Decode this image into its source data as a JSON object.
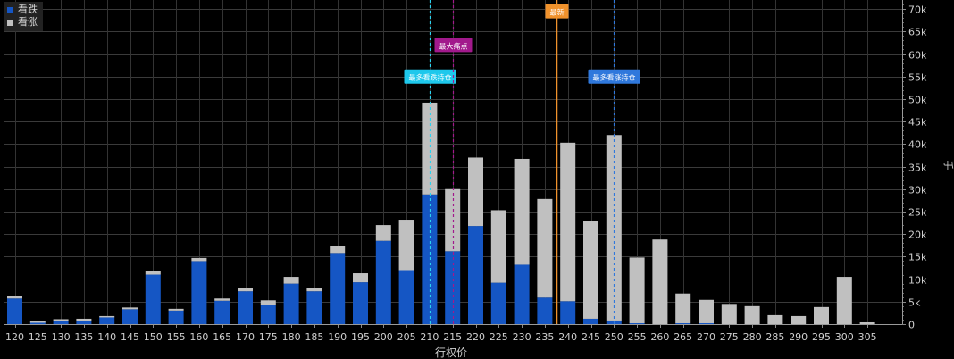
{
  "chart_data": {
    "type": "bar",
    "stacked": true,
    "categories": [
      "120",
      "125",
      "130",
      "135",
      "140",
      "145",
      "150",
      "155",
      "160",
      "165",
      "170",
      "175",
      "180",
      "185",
      "190",
      "195",
      "200",
      "205",
      "210",
      "215",
      "220",
      "225",
      "230",
      "235",
      "240",
      "245",
      "250",
      "255",
      "260",
      "265",
      "270",
      "275",
      "280",
      "285",
      "290",
      "295",
      "300",
      "305"
    ],
    "series": [
      {
        "name": "看跌",
        "color": "#1556c4",
        "values": [
          5700,
          300,
          700,
          700,
          1500,
          3300,
          11000,
          3000,
          14000,
          5200,
          7300,
          4300,
          9000,
          7300,
          15800,
          9300,
          18500,
          12000,
          28800,
          16200,
          21800,
          9200,
          13200,
          5900,
          5100,
          1200,
          800,
          200,
          0,
          200,
          200,
          0,
          0,
          0,
          0,
          0,
          0,
          0
        ]
      },
      {
        "name": "看涨",
        "color": "#c0c0c0",
        "values": [
          500,
          300,
          400,
          500,
          300,
          400,
          800,
          400,
          700,
          500,
          700,
          1000,
          1500,
          800,
          1500,
          2000,
          3500,
          11200,
          20400,
          13800,
          15200,
          16100,
          23500,
          21900,
          35200,
          21800,
          41200,
          14600,
          18800,
          6600,
          5200,
          4500,
          4000,
          2000,
          1800,
          3800,
          10500,
          400
        ]
      }
    ],
    "ylim": [
      0,
      72000
    ],
    "yticks": [
      0,
      5000,
      10000,
      15000,
      20000,
      25000,
      30000,
      35000,
      40000,
      45000,
      50000,
      55000,
      60000,
      65000,
      70000
    ],
    "ytick_labels": [
      "0",
      "5k",
      "10k",
      "15k",
      "20k",
      "25k",
      "30k",
      "35k",
      "40k",
      "45k",
      "50k",
      "55k",
      "60k",
      "65k",
      "70k"
    ],
    "xlabel": "行权价",
    "ylabel": "手",
    "legend": "top-left",
    "grid": true,
    "markers": [
      {
        "label": "最多看跌持仓",
        "at": 210,
        "style": "dashed",
        "color": "#29d3f0",
        "label_bg": "#1ec8ec",
        "level": 55000
      },
      {
        "label": "最大痛点",
        "at": 215,
        "style": "dashed",
        "color": "#a2198c",
        "label_bg": "#a2198c",
        "level": 62000
      },
      {
        "label": "最新",
        "at": 237.5,
        "style": "solid",
        "color": "#f0922c",
        "label_bg": "#f0922c",
        "level": 69500
      },
      {
        "label": "最多看涨持仓",
        "at": 250,
        "style": "dashed",
        "color": "#2f78dc",
        "label_bg": "#2f78dc",
        "level": 55000
      }
    ]
  }
}
